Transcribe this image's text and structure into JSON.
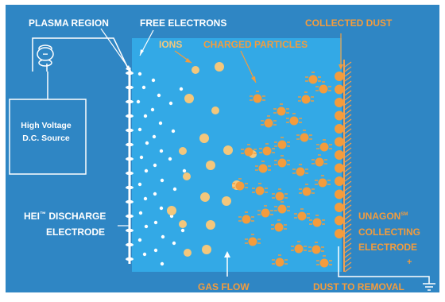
{
  "labels": {
    "plasma_region": "PLASMA REGION",
    "free_electrons": "FREE ELECTRONS",
    "collected_dust": "COLLECTED DUST",
    "ions": "IONS",
    "charged_particles": "CHARGED PARTICLES",
    "source_line1": "High Voltage",
    "source_line2": "D.C. Source",
    "source_symbol": "−",
    "hei_line1": "HEI",
    "hei_tm": "™",
    "hei_line1_rest": " DISCHARGE",
    "hei_line2": "ELECTRODE",
    "unagon_line1": "UNAGON",
    "unagon_sm": "SM",
    "unagon_line2": "COLLECTING",
    "unagon_line3": "ELECTRODE",
    "plus_sign": "+",
    "gas_flow": "GAS FLOW",
    "dust_to_removal": "DUST TO REMOVAL"
  },
  "colors": {
    "background": "#2f86c4",
    "chamber": "#33a9e6",
    "orange": "#f39c3d",
    "tan": "#f3c77c",
    "white": "#ffffff",
    "hatch": "#f0a050"
  }
}
